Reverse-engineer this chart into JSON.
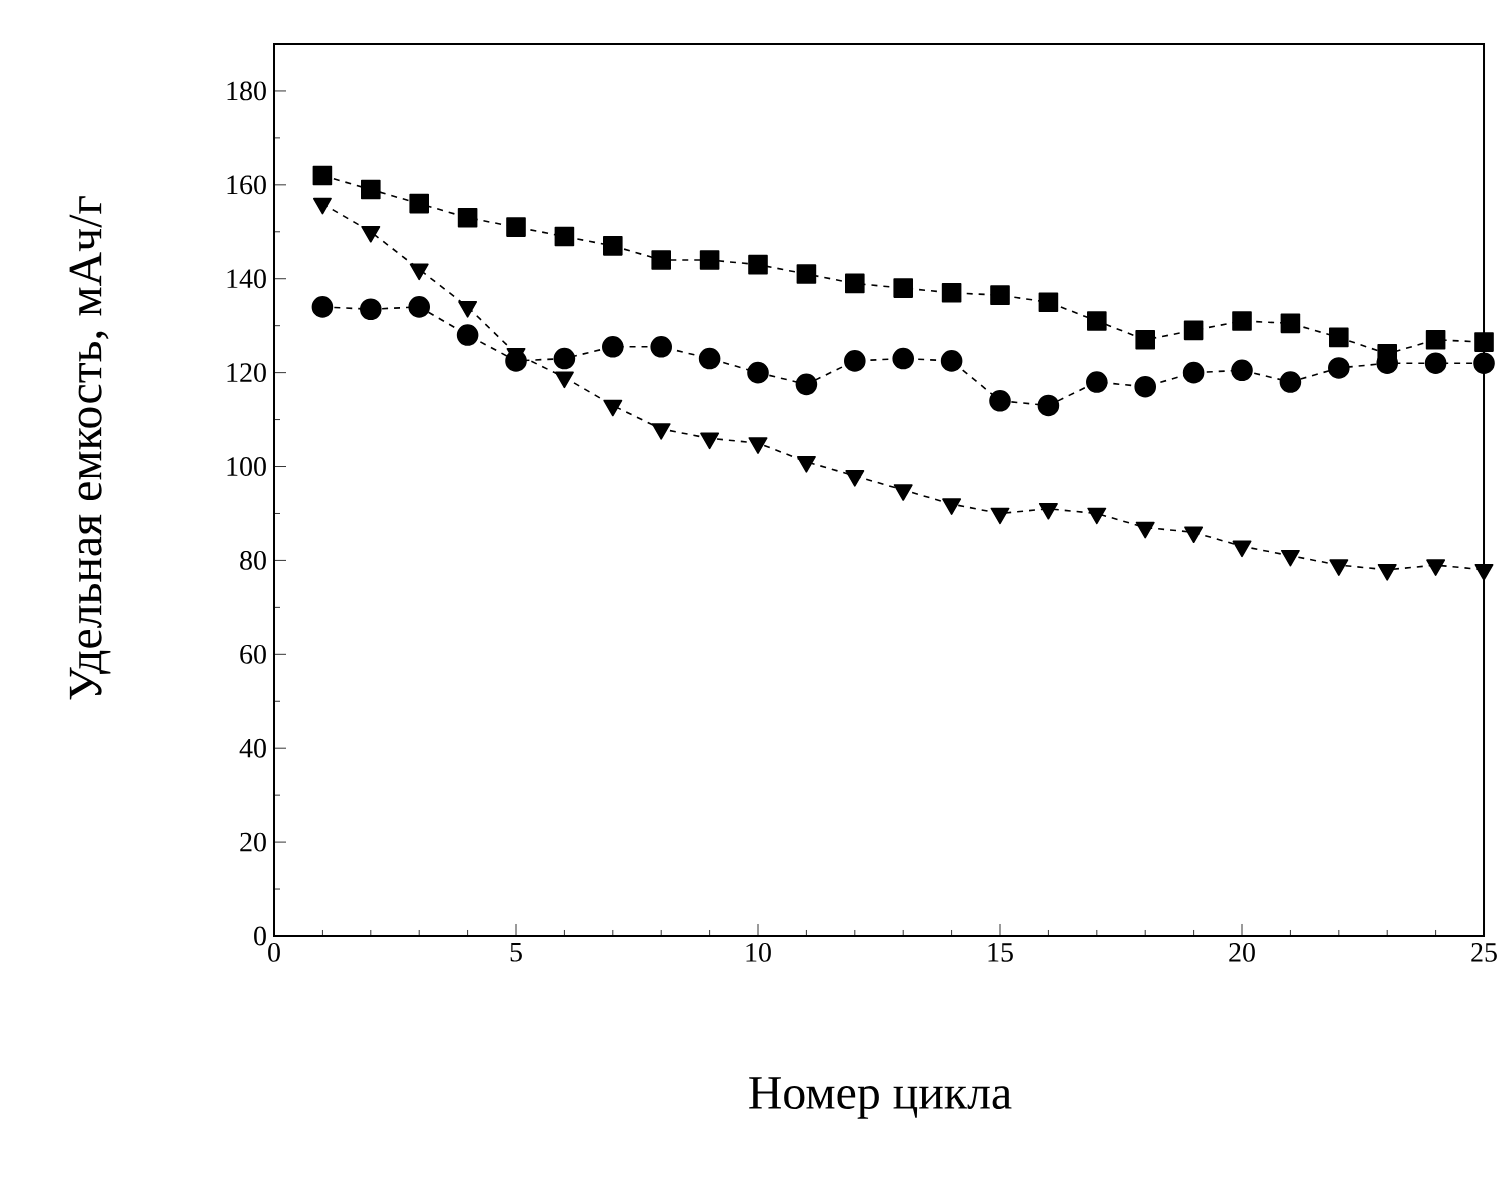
{
  "chart_data": {
    "type": "line",
    "xlabel": "Номер цикла",
    "ylabel": "Удельная емкость, мАч/г",
    "x": [
      1,
      2,
      3,
      4,
      5,
      6,
      7,
      8,
      9,
      10,
      11,
      12,
      13,
      14,
      15,
      16,
      17,
      18,
      19,
      20,
      21,
      22,
      23,
      24,
      25
    ],
    "series": [
      {
        "color": "#000000",
        "marker": "square",
        "values": [
          162,
          159,
          156,
          153,
          151,
          149,
          147,
          144,
          144,
          143,
          141,
          139,
          138,
          137,
          136.5,
          135,
          131,
          127,
          129,
          131,
          130.5,
          127.5,
          124,
          127,
          126.5
        ]
      },
      {
        "color": "#000000",
        "marker": "circle",
        "values": [
          134,
          133.5,
          134,
          128,
          122.5,
          123,
          125.5,
          125.5,
          123,
          120,
          117.5,
          122.5,
          123,
          122.5,
          114,
          113,
          118,
          117,
          120,
          120.5,
          118,
          121,
          122,
          122,
          122
        ]
      },
      {
        "color": "#000000",
        "marker": "triangle",
        "values": [
          156,
          150,
          142,
          134,
          124,
          119,
          113,
          108,
          106,
          105,
          101,
          98,
          95,
          92,
          90,
          91,
          90,
          87,
          86,
          83,
          81,
          79,
          78,
          79,
          78
        ]
      }
    ],
    "line_style": "dashed",
    "xlim": [
      0,
      25
    ],
    "ylim": [
      0,
      190
    ],
    "xticks": [
      0,
      5,
      10,
      15,
      20,
      25
    ],
    "yticks": [
      0,
      20,
      40,
      60,
      80,
      100,
      120,
      140,
      160,
      180
    ],
    "grid": false
  }
}
